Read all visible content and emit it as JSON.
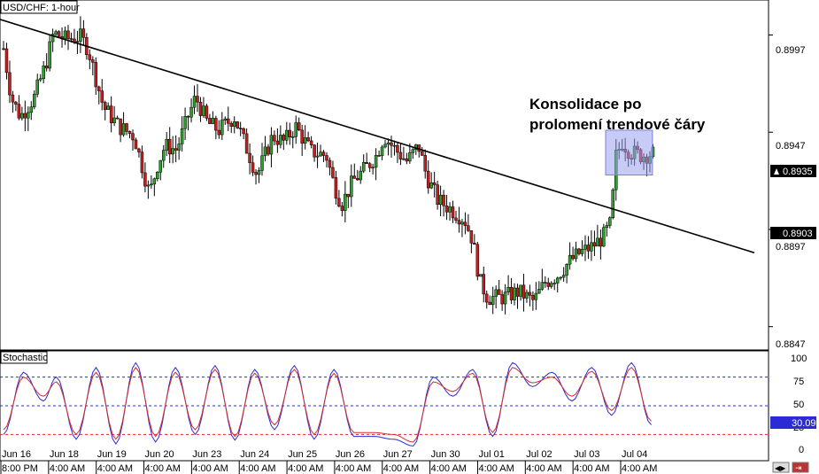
{
  "chart_data": [
    {
      "type": "candlestick",
      "title": "USD/CHF: 1-hour",
      "y_ticks": [
        "0.8997",
        "0.8947",
        "0.8897",
        "0.8847"
      ],
      "ylim": [
        0.8835,
        0.9015
      ],
      "current_price": "0.8935",
      "marked_level": "0.8903",
      "annotation": [
        "Konsolidace po",
        "prolomení trendové čáry"
      ],
      "trendline": {
        "x": [
          0.0,
          1.0
        ],
        "y": [
          0.9005,
          0.8885
        ]
      },
      "highlight_box": {
        "x": [
          0.788,
          0.849
        ],
        "y": [
          0.8925,
          0.8948
        ]
      },
      "colors": {
        "bull": "#2e9e2e",
        "bear": "#c22020",
        "trendline": "#000000",
        "highlight": "#9aa0ee"
      },
      "price_path": [
        [
          0.0,
          0.899
        ],
        [
          0.01,
          0.8965
        ],
        [
          0.022,
          0.8955
        ],
        [
          0.04,
          0.8965
        ],
        [
          0.055,
          0.8982
        ],
        [
          0.065,
          0.8998
        ],
        [
          0.08,
          0.8995
        ],
        [
          0.1,
          0.8996
        ],
        [
          0.11,
          0.899
        ],
        [
          0.12,
          0.8975
        ],
        [
          0.13,
          0.896
        ],
        [
          0.15,
          0.895
        ],
        [
          0.17,
          0.8945
        ],
        [
          0.18,
          0.893
        ],
        [
          0.19,
          0.8915
        ],
        [
          0.2,
          0.893
        ],
        [
          0.21,
          0.894
        ],
        [
          0.225,
          0.8938
        ],
        [
          0.24,
          0.8955
        ],
        [
          0.25,
          0.8965
        ],
        [
          0.265,
          0.8952
        ],
        [
          0.28,
          0.8948
        ],
        [
          0.3,
          0.8955
        ],
        [
          0.32,
          0.8935
        ],
        [
          0.33,
          0.8925
        ],
        [
          0.35,
          0.8945
        ],
        [
          0.365,
          0.8942
        ],
        [
          0.38,
          0.895
        ],
        [
          0.4,
          0.8937
        ],
        [
          0.42,
          0.8935
        ],
        [
          0.43,
          0.892
        ],
        [
          0.44,
          0.891
        ],
        [
          0.455,
          0.8922
        ],
        [
          0.47,
          0.8928
        ],
        [
          0.485,
          0.8935
        ],
        [
          0.495,
          0.8945
        ],
        [
          0.51,
          0.8938
        ],
        [
          0.525,
          0.8932
        ],
        [
          0.54,
          0.894
        ],
        [
          0.55,
          0.8925
        ],
        [
          0.565,
          0.8912
        ],
        [
          0.58,
          0.8908
        ],
        [
          0.6,
          0.8902
        ],
        [
          0.61,
          0.8892
        ],
        [
          0.62,
          0.887
        ],
        [
          0.63,
          0.8862
        ],
        [
          0.65,
          0.8862
        ],
        [
          0.67,
          0.8865
        ],
        [
          0.69,
          0.886
        ],
        [
          0.705,
          0.887
        ],
        [
          0.72,
          0.8873
        ],
        [
          0.735,
          0.888
        ],
        [
          0.75,
          0.8885
        ],
        [
          0.765,
          0.8888
        ],
        [
          0.78,
          0.8893
        ],
        [
          0.79,
          0.89
        ],
        [
          0.797,
          0.8935
        ],
        [
          0.805,
          0.8942
        ],
        [
          0.815,
          0.8937
        ],
        [
          0.83,
          0.8935
        ],
        [
          0.845,
          0.8936
        ]
      ]
    },
    {
      "type": "line",
      "title": "Stochastic",
      "y_ticks": [
        "100",
        "75",
        "50",
        "25",
        "0"
      ],
      "ylim": [
        0,
        100
      ],
      "levels": [
        80,
        50,
        20
      ],
      "current_value": "30.09",
      "series": [
        {
          "color": "#2b2bd6",
          "values": [
            [
              0.0,
              20
            ],
            [
              0.03,
              85
            ],
            [
              0.06,
              55
            ],
            [
              0.08,
              80
            ],
            [
              0.11,
              15
            ],
            [
              0.14,
              90
            ],
            [
              0.17,
              10
            ],
            [
              0.2,
              95
            ],
            [
              0.23,
              12
            ],
            [
              0.26,
              90
            ],
            [
              0.29,
              20
            ],
            [
              0.32,
              92
            ],
            [
              0.35,
              14
            ],
            [
              0.38,
              88
            ],
            [
              0.41,
              25
            ],
            [
              0.44,
              92
            ],
            [
              0.47,
              15
            ],
            [
              0.5,
              88
            ],
            [
              0.53,
              18
            ],
            [
              0.56,
              18
            ],
            [
              0.59,
              15
            ],
            [
              0.62,
              8
            ],
            [
              0.65,
              80
            ],
            [
              0.68,
              60
            ],
            [
              0.71,
              88
            ],
            [
              0.74,
              18
            ],
            [
              0.77,
              95
            ],
            [
              0.8,
              70
            ],
            [
              0.83,
              85
            ],
            [
              0.86,
              55
            ],
            [
              0.89,
              90
            ],
            [
              0.92,
              40
            ],
            [
              0.95,
              95
            ],
            [
              0.98,
              30
            ]
          ]
        },
        {
          "color": "#d62b2b",
          "values": [
            [
              0.0,
              25
            ],
            [
              0.03,
              80
            ],
            [
              0.06,
              60
            ],
            [
              0.08,
              75
            ],
            [
              0.11,
              20
            ],
            [
              0.14,
              85
            ],
            [
              0.17,
              15
            ],
            [
              0.2,
              90
            ],
            [
              0.23,
              18
            ],
            [
              0.26,
              85
            ],
            [
              0.29,
              25
            ],
            [
              0.32,
              88
            ],
            [
              0.35,
              18
            ],
            [
              0.38,
              84
            ],
            [
              0.41,
              30
            ],
            [
              0.44,
              88
            ],
            [
              0.47,
              20
            ],
            [
              0.5,
              84
            ],
            [
              0.53,
              22
            ],
            [
              0.56,
              22
            ],
            [
              0.59,
              20
            ],
            [
              0.62,
              12
            ],
            [
              0.65,
              75
            ],
            [
              0.68,
              65
            ],
            [
              0.71,
              84
            ],
            [
              0.74,
              22
            ],
            [
              0.77,
              90
            ],
            [
              0.8,
              74
            ],
            [
              0.83,
              80
            ],
            [
              0.86,
              60
            ],
            [
              0.89,
              86
            ],
            [
              0.92,
              45
            ],
            [
              0.95,
              90
            ],
            [
              0.98,
              34
            ]
          ]
        }
      ]
    }
  ],
  "x_axis": {
    "date_ticks": [
      "Jun 16",
      "Jun 18",
      "Jun 19",
      "Jun 20",
      "Jun 23",
      "Jun 24",
      "Jun 25",
      "Jun 26",
      "Jun 27",
      "Jun 30",
      "Jul 01",
      "Jul 02",
      "Jul 03",
      "Jul 04"
    ],
    "time_ticks": [
      "8:00 PM",
      "4:00 AM",
      "4:00 AM",
      "4:00 AM",
      "4:00 AM",
      "4:00 AM",
      "4:00 AM",
      "4:00 AM",
      "4:00 AM",
      "4:00 AM",
      "4:00 AM",
      "4:00 AM",
      "4:00 AM",
      "4:00 AM"
    ]
  }
}
